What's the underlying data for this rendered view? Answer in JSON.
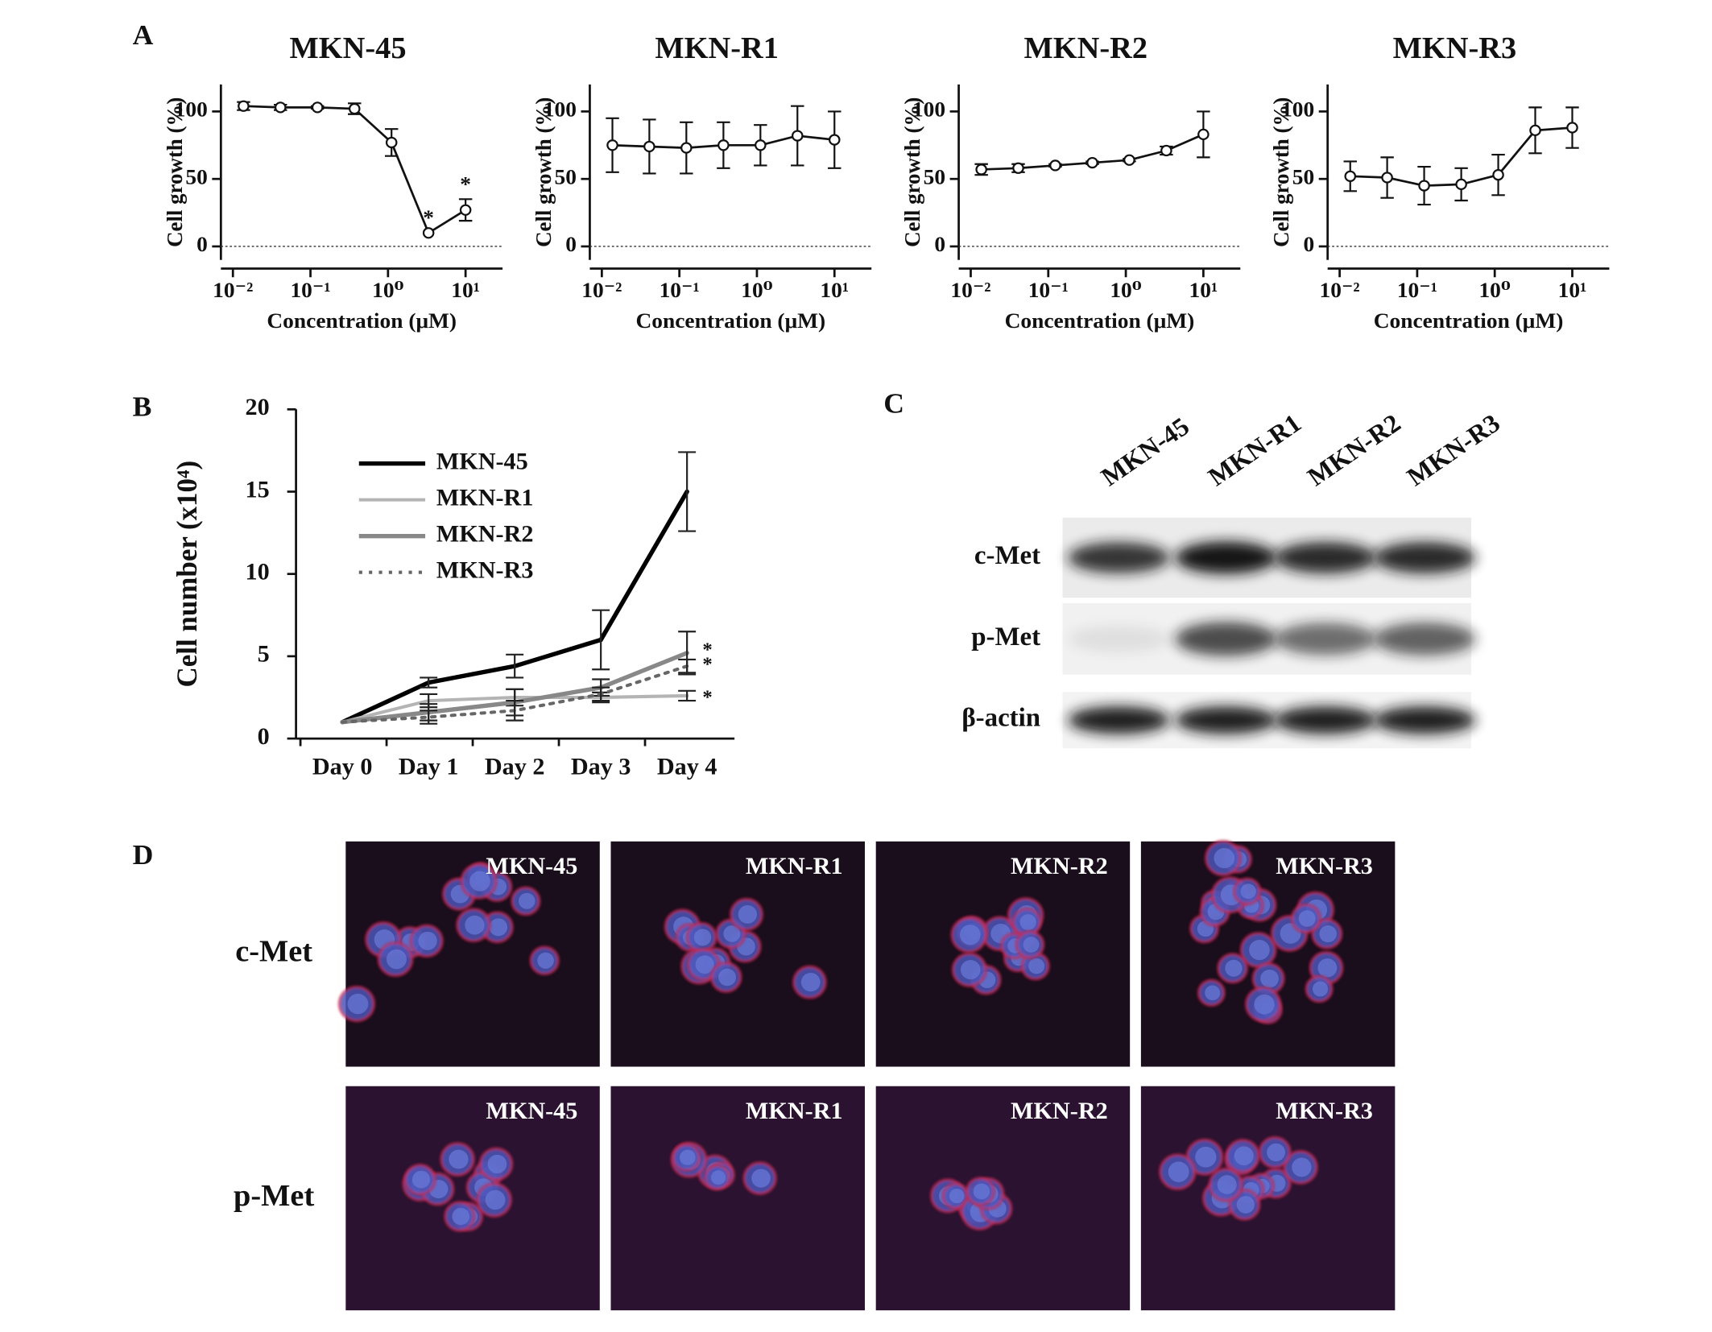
{
  "panels": [
    "A",
    "B",
    "C",
    "D"
  ],
  "chart_data": [
    {
      "type": "dose-response",
      "title": "MKN-45",
      "x_label": "Concentration (μM)",
      "y_label": "Cell growth (%)",
      "log_x": true,
      "color": "#111111",
      "x": [
        0.0137,
        0.041,
        0.123,
        0.37,
        1.11,
        3.33,
        10
      ],
      "values": [
        104,
        103,
        103,
        102,
        77,
        10,
        27
      ],
      "errors": [
        3,
        2,
        1,
        4,
        10,
        0,
        8
      ],
      "xlim": [
        0.007,
        30
      ],
      "xticks": [
        {
          "value": 0.01,
          "label": "10⁻²"
        },
        {
          "value": 0.1,
          "label": "10⁻¹"
        },
        {
          "value": 1,
          "label": "10⁰"
        },
        {
          "value": 10,
          "label": "10¹"
        }
      ],
      "ylim": [
        -10,
        120
      ],
      "yticks": [
        0,
        50,
        100
      ],
      "annotations": [
        "*",
        "*"
      ]
    },
    {
      "type": "dose-response",
      "title": "MKN-R1",
      "x_label": "Concentration (μM)",
      "y_label": "Cell growth (%)",
      "log_x": true,
      "color": "#111111",
      "x": [
        0.0137,
        0.041,
        0.123,
        0.37,
        1.11,
        3.33,
        10
      ],
      "values": [
        75,
        74,
        73,
        75,
        75,
        82,
        79
      ],
      "errors": [
        20,
        20,
        19,
        17,
        15,
        22,
        21
      ],
      "xlim": [
        0.007,
        30
      ],
      "xticks": [
        {
          "value": 0.01,
          "label": "10⁻²"
        },
        {
          "value": 0.1,
          "label": "10⁻¹"
        },
        {
          "value": 1,
          "label": "10⁰"
        },
        {
          "value": 10,
          "label": "10¹"
        }
      ],
      "ylim": [
        -10,
        120
      ],
      "yticks": [
        0,
        50,
        100
      ]
    },
    {
      "type": "dose-response",
      "title": "MKN-R2",
      "x_label": "Concentration (μM)",
      "y_label": "Cell growth (%)",
      "log_x": true,
      "color": "#111111",
      "x": [
        0.0137,
        0.041,
        0.123,
        0.37,
        1.11,
        3.33,
        10
      ],
      "values": [
        57,
        58,
        60,
        62,
        64,
        71,
        83
      ],
      "errors": [
        4,
        3,
        1,
        1,
        1,
        3,
        17
      ],
      "xlim": [
        0.007,
        30
      ],
      "xticks": [
        {
          "value": 0.01,
          "label": "10⁻²"
        },
        {
          "value": 0.1,
          "label": "10⁻¹"
        },
        {
          "value": 1,
          "label": "10⁰"
        },
        {
          "value": 10,
          "label": "10¹"
        }
      ],
      "ylim": [
        -10,
        120
      ],
      "yticks": [
        0,
        50,
        100
      ]
    },
    {
      "type": "dose-response",
      "title": "MKN-R3",
      "x_label": "Concentration (μM)",
      "y_label": "Cell growth (%)",
      "log_x": true,
      "color": "#111111",
      "x": [
        0.0137,
        0.041,
        0.123,
        0.37,
        1.11,
        3.33,
        10
      ],
      "values": [
        52,
        51,
        45,
        46,
        53,
        86,
        88
      ],
      "errors": [
        11,
        15,
        14,
        12,
        15,
        17,
        15
      ],
      "xlim": [
        0.007,
        30
      ],
      "xticks": [
        {
          "value": 0.01,
          "label": "10⁻²"
        },
        {
          "value": 0.1,
          "label": "10⁻¹"
        },
        {
          "value": 1,
          "label": "10⁰"
        },
        {
          "value": 10,
          "label": "10¹"
        }
      ],
      "ylim": [
        -10,
        120
      ],
      "yticks": [
        0,
        50,
        100
      ]
    },
    {
      "type": "line",
      "y_label": "Cell number (x10⁴)",
      "categories": [
        "Day 0",
        "Day 1",
        "Day 2",
        "Day 3",
        "Day 4"
      ],
      "ylim": [
        0,
        20
      ],
      "yticks": [
        0,
        5,
        10,
        15,
        20
      ],
      "legend": "upper left",
      "annotations": [
        "*",
        "*",
        "*"
      ],
      "series": [
        {
          "name": "MKN-45",
          "color": "#000000",
          "line_style": "solid",
          "values": [
            1,
            3.4,
            4.4,
            6,
            15
          ],
          "errors": [
            0,
            0.3,
            0.7,
            1.8,
            2.4
          ]
        },
        {
          "name": "MKN-R1",
          "color": "#b4b4b4",
          "line_style": "solid",
          "values": [
            1,
            2.3,
            2.5,
            2.5,
            2.6
          ],
          "errors": [
            0,
            0.4,
            0.5,
            0.3,
            0.3
          ]
        },
        {
          "name": "MKN-R2",
          "color": "#888888",
          "line_style": "solid",
          "values": [
            1,
            1.6,
            2.2,
            3.1,
            5.2
          ],
          "errors": [
            0,
            0.5,
            0.8,
            0.5,
            1.3
          ]
        },
        {
          "name": "MKN-R3",
          "color": "#666666",
          "line_style": "dotted",
          "values": [
            1,
            1.3,
            1.7,
            2.7,
            4.4
          ],
          "errors": [
            0,
            0.4,
            0.6,
            0.4,
            0.4
          ]
        }
      ]
    }
  ],
  "blot": {
    "columns": [
      "MKN-45",
      "MKN-R1",
      "MKN-R2",
      "MKN-R3"
    ],
    "rows": [
      "c-Met",
      "p-Met",
      "β-actin"
    ]
  },
  "microscopy": {
    "columns": [
      "MKN-45",
      "MKN-R1",
      "MKN-R2",
      "MKN-R3"
    ],
    "rows": [
      "c-Met",
      "p-Met"
    ]
  }
}
